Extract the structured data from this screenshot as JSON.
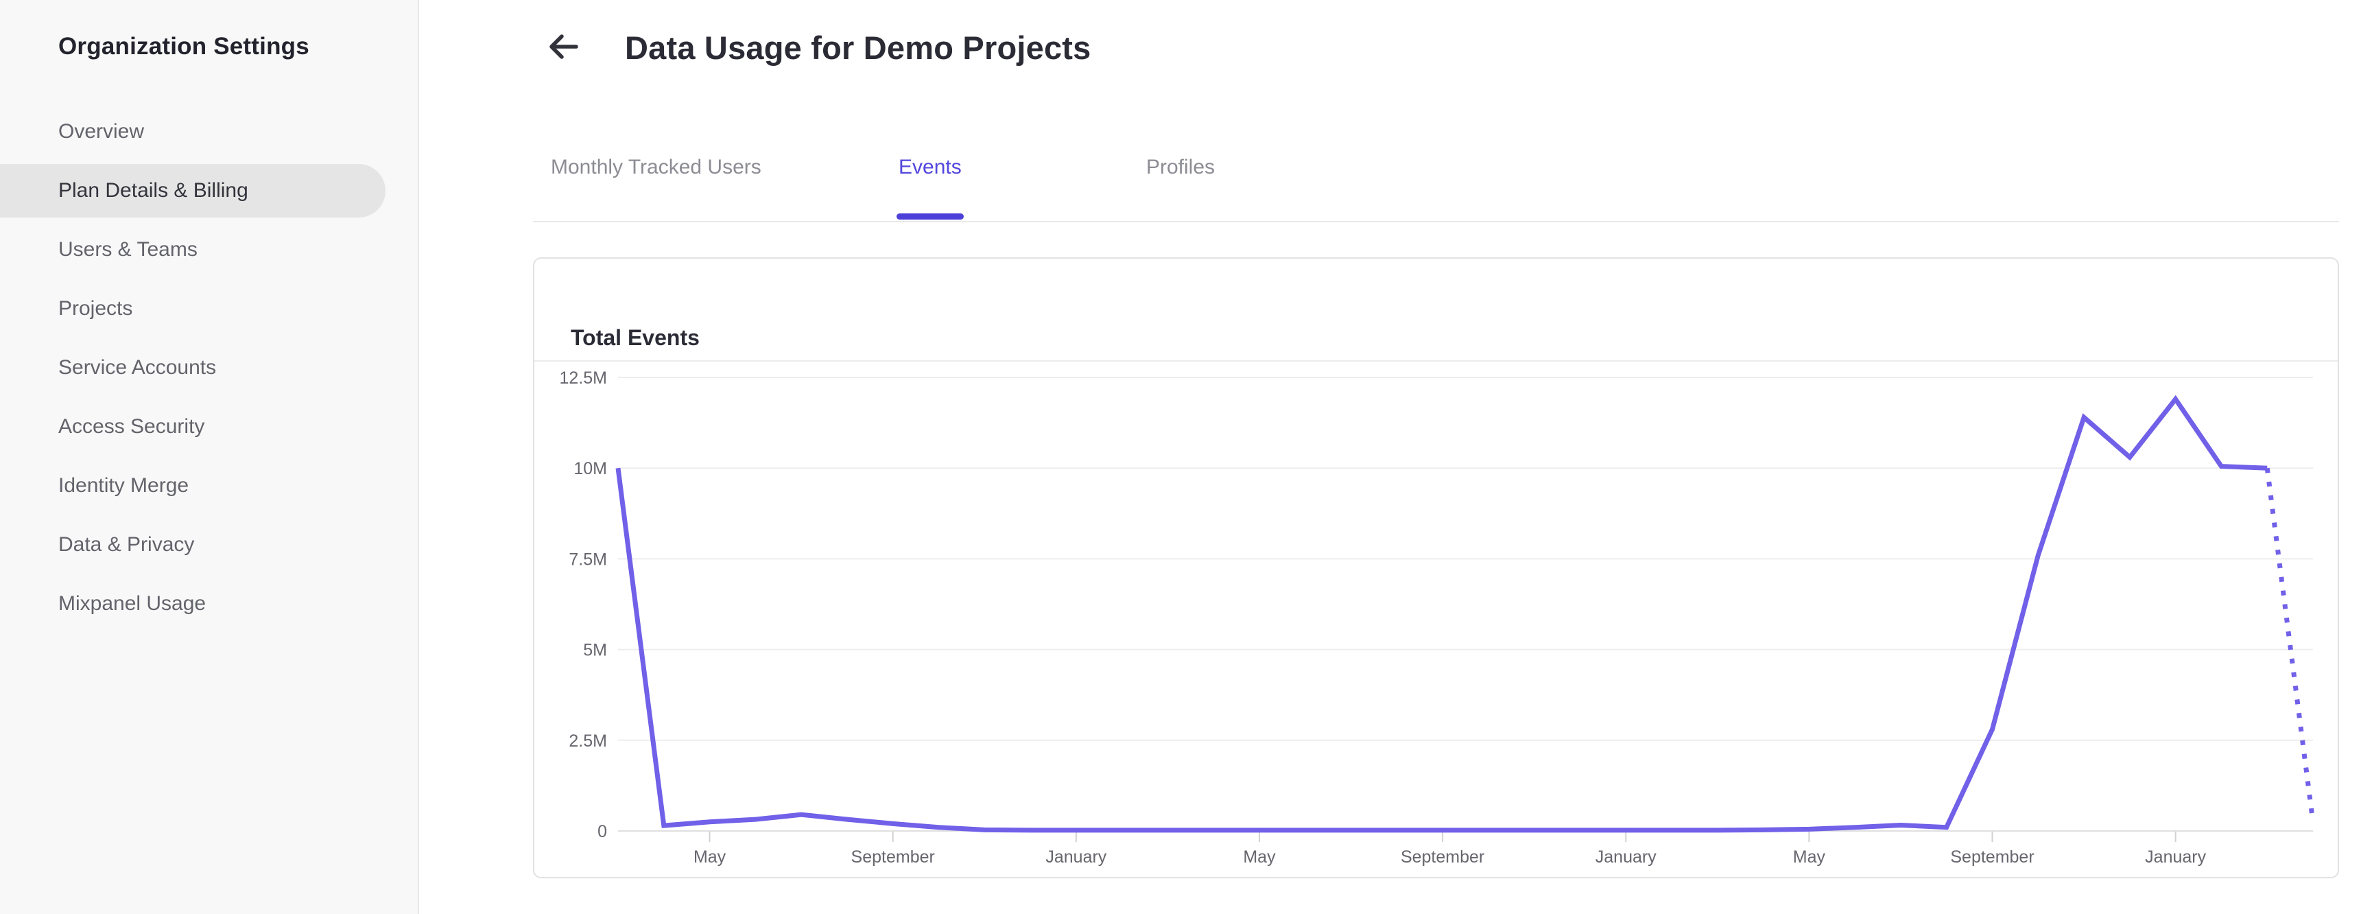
{
  "sidebar": {
    "title": "Organization Settings",
    "items": [
      {
        "label": "Overview",
        "selected": false
      },
      {
        "label": "Plan Details & Billing",
        "selected": true
      },
      {
        "label": "Users & Teams",
        "selected": false
      },
      {
        "label": "Projects",
        "selected": false
      },
      {
        "label": "Service Accounts",
        "selected": false
      },
      {
        "label": "Access Security",
        "selected": false
      },
      {
        "label": "Identity Merge",
        "selected": false
      },
      {
        "label": "Data & Privacy",
        "selected": false
      },
      {
        "label": "Mixpanel Usage",
        "selected": false
      }
    ]
  },
  "header": {
    "title": "Data Usage for Demo Projects",
    "back_icon": "arrow-left"
  },
  "tabs": [
    {
      "label": "Monthly Tracked Users",
      "active": false
    },
    {
      "label": "Events",
      "active": true
    },
    {
      "label": "Profiles",
      "active": false
    }
  ],
  "card": {
    "title": "Total Events"
  },
  "colors": {
    "accent_purple": "#5347dd",
    "accent_underline": "#4d40d8",
    "line_purple": "#7160e8",
    "sidebar_bg": "#f8f8f8",
    "selected_pill": "#e5e5e5",
    "gridline": "#ededed",
    "axis_line": "#e0e0e0",
    "tick_mark": "#d2d2d2",
    "axis_label": "#66666e"
  },
  "chart_data": {
    "type": "line",
    "title": "Total Events",
    "ylabel": "",
    "xlabel": "",
    "unit": "millions of events",
    "ylim": [
      0,
      12.5
    ],
    "grid": "horizontal",
    "legend_position": "none",
    "y_ticks": [
      "12.5M",
      "10M",
      "7.5M",
      "5M",
      "2.5M",
      "0"
    ],
    "y_tick_values": [
      12.5,
      10,
      7.5,
      5,
      2.5,
      0
    ],
    "x_tick_labels": [
      "May",
      "September",
      "January",
      "May",
      "September",
      "January",
      "May",
      "September",
      "January"
    ],
    "x_tick_indices": [
      2,
      6,
      10,
      14,
      18,
      22,
      26,
      30,
      34
    ],
    "series": [
      {
        "name": "Total Events",
        "values_millions": [
          10,
          0.15,
          0.25,
          0.32,
          0.45,
          0.32,
          0.2,
          0.1,
          0.03,
          0.02,
          0.02,
          0.02,
          0.02,
          0.02,
          0.02,
          0.02,
          0.02,
          0.02,
          0.02,
          0.02,
          0.02,
          0.02,
          0.02,
          0.02,
          0.02,
          0.03,
          0.05,
          0.1,
          0.16,
          0.1,
          2.8,
          7.6,
          11.4,
          10.3,
          11.9,
          10.05,
          10.0,
          0.25
        ],
        "projected_points_at_end": 1,
        "projected_style": "dotted"
      }
    ]
  }
}
